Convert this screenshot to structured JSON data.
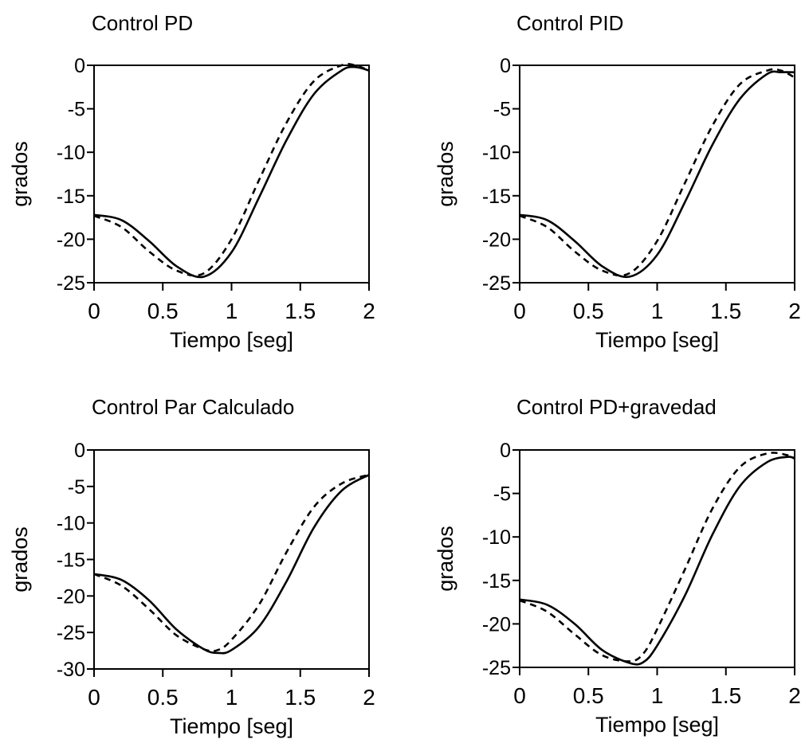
{
  "chart_data": [
    {
      "type": "line",
      "title": "Control PD",
      "xlabel": "Tiempo [seg]",
      "ylabel": "grados",
      "xlim": [
        0,
        2
      ],
      "ylim": [
        -25,
        0
      ],
      "xticks": [
        "0",
        "0.5",
        "1",
        "1.5",
        "2"
      ],
      "yticks": [
        "0",
        "-5",
        "-10",
        "-15",
        "-20",
        "-25"
      ],
      "grid": false,
      "x": [
        0,
        0.2,
        0.4,
        0.6,
        0.8,
        1.0,
        1.2,
        1.4,
        1.6,
        1.8,
        1.9,
        2.0
      ],
      "series": [
        {
          "style": "solid",
          "values": [
            -17.2,
            -17.8,
            -20.2,
            -23.1,
            -24.3,
            -21.5,
            -15.2,
            -8.6,
            -3.3,
            -0.6,
            -0.2,
            -0.6
          ]
        },
        {
          "style": "dashed",
          "values": [
            -17.3,
            -18.6,
            -21.4,
            -23.6,
            -23.9,
            -20.0,
            -13.2,
            -6.6,
            -1.8,
            0.0,
            0.0,
            -0.6
          ]
        }
      ]
    },
    {
      "type": "line",
      "title": "Control PID",
      "xlabel": "Tiempo [seg]",
      "ylabel": "grados",
      "xlim": [
        0,
        2
      ],
      "ylim": [
        -25,
        0
      ],
      "xticks": [
        "0",
        "0.5",
        "1",
        "1.5",
        "2"
      ],
      "yticks": [
        "0",
        "-5",
        "-10",
        "-15",
        "-20",
        "-25"
      ],
      "grid": false,
      "x": [
        0,
        0.2,
        0.4,
        0.6,
        0.8,
        1.0,
        1.2,
        1.4,
        1.6,
        1.8,
        1.9,
        2.0
      ],
      "series": [
        {
          "style": "solid",
          "values": [
            -17.2,
            -17.8,
            -20.2,
            -23.1,
            -24.3,
            -21.8,
            -15.8,
            -9.2,
            -3.9,
            -1.0,
            -0.8,
            -0.8
          ]
        },
        {
          "style": "dashed",
          "values": [
            -17.3,
            -18.6,
            -21.4,
            -23.6,
            -23.9,
            -20.2,
            -13.6,
            -7.0,
            -2.2,
            -0.6,
            -0.6,
            -1.4
          ]
        }
      ]
    },
    {
      "type": "line",
      "title": "Control Par Calculado",
      "xlabel": "Tiempo [seg]",
      "ylabel": "grados",
      "xlim": [
        0,
        2
      ],
      "ylim": [
        -30,
        0
      ],
      "xticks": [
        "0",
        "0.5",
        "1",
        "1.5",
        "2"
      ],
      "yticks": [
        "0",
        "-5",
        "-10",
        "-15",
        "-20",
        "-25",
        "-30"
      ],
      "grid": false,
      "x": [
        0,
        0.2,
        0.4,
        0.6,
        0.8,
        0.9,
        1.0,
        1.2,
        1.4,
        1.6,
        1.8,
        2.0
      ],
      "series": [
        {
          "style": "solid",
          "values": [
            -17.0,
            -17.8,
            -20.6,
            -24.6,
            -27.3,
            -27.8,
            -27.4,
            -24.2,
            -18.0,
            -10.6,
            -5.6,
            -3.4
          ]
        },
        {
          "style": "dashed",
          "values": [
            -17.0,
            -18.6,
            -21.8,
            -25.4,
            -27.3,
            -27.4,
            -26.0,
            -21.2,
            -14.0,
            -7.8,
            -4.6,
            -3.4
          ]
        }
      ]
    },
    {
      "type": "line",
      "title": "Control PD+gravedad",
      "xlabel": "Tiempo [seg]",
      "ylabel": "grados",
      "xlim": [
        0,
        2
      ],
      "ylim": [
        -25,
        0
      ],
      "xticks": [
        "0",
        "0.5",
        "1",
        "1.5",
        "2"
      ],
      "yticks": [
        "0",
        "-5",
        "-10",
        "-15",
        "-20",
        "-25"
      ],
      "grid": false,
      "x": [
        0,
        0.2,
        0.4,
        0.6,
        0.8,
        0.9,
        1.0,
        1.2,
        1.4,
        1.6,
        1.8,
        1.95,
        2.0
      ],
      "series": [
        {
          "style": "solid",
          "values": [
            -17.2,
            -17.8,
            -20.0,
            -23.0,
            -24.5,
            -24.4,
            -22.5,
            -16.8,
            -9.8,
            -4.2,
            -1.4,
            -0.8,
            -1.0
          ]
        },
        {
          "style": "dashed",
          "values": [
            -17.3,
            -18.6,
            -21.2,
            -23.6,
            -24.3,
            -23.4,
            -20.6,
            -13.8,
            -6.8,
            -2.0,
            -0.4,
            -0.6,
            -1.0
          ]
        }
      ]
    }
  ]
}
